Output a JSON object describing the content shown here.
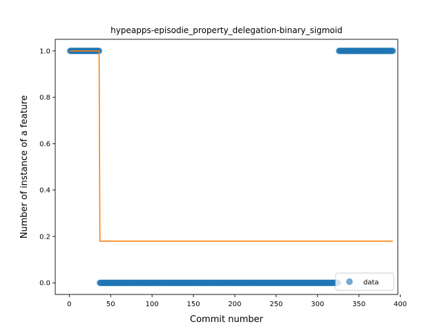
{
  "chart_data": {
    "type": "scatter",
    "title": "hypeapps-episodie_property_delegation-binary_sigmoid",
    "xlabel": "Commit number",
    "ylabel": "Number of instance of a feature",
    "xlim": [
      -17,
      397
    ],
    "ylim": [
      -0.05,
      1.05
    ],
    "xticks": [
      0,
      50,
      100,
      150,
      200,
      250,
      300,
      350,
      400
    ],
    "yticks": [
      0.0,
      0.2,
      0.4,
      0.6,
      0.8,
      1.0
    ],
    "xtick_labels": [
      "0",
      "50",
      "100",
      "150",
      "200",
      "250",
      "300",
      "350",
      "400"
    ],
    "ytick_labels": [
      "0.0",
      "0.2",
      "0.4",
      "0.6",
      "0.8",
      "1.0"
    ],
    "grid": false,
    "legend": {
      "position": "lower right",
      "entries": [
        "data"
      ]
    },
    "colors": {
      "data": "#1f77b4",
      "fit": "#ff7f0e"
    },
    "series": [
      {
        "name": "data",
        "kind": "points",
        "segments": [
          {
            "x_from": 1,
            "x_to": 36,
            "y": 1.0
          },
          {
            "x_from": 37,
            "x_to": 325,
            "y": 0.0
          },
          {
            "x_from": 326,
            "x_to": 391,
            "y": 1.0
          }
        ]
      },
      {
        "kind": "step-line",
        "x": [
          1,
          36,
          37,
          391
        ],
        "y": [
          1.0,
          1.0,
          0.18,
          0.18
        ]
      }
    ]
  }
}
